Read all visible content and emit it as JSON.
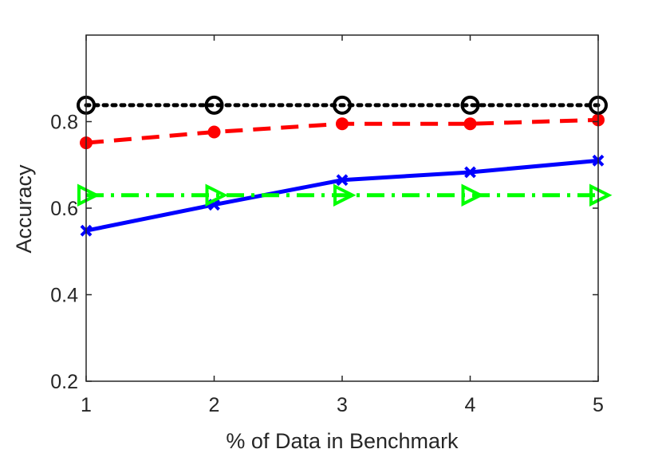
{
  "chart_data": {
    "type": "line",
    "xlabel": "% of Data in Benchmark",
    "ylabel": "Accuracy",
    "x": [
      1,
      2,
      3,
      4,
      5
    ],
    "xlim": [
      1,
      5
    ],
    "ylim": [
      0.2,
      1.0
    ],
    "xticks": [
      "1",
      "2",
      "3",
      "4",
      "5"
    ],
    "yticks": [
      {
        "value": 0.2,
        "label": "0.2"
      },
      {
        "value": 0.4,
        "label": "0.4"
      },
      {
        "value": 0.6,
        "label": "0.6"
      },
      {
        "value": 0.8,
        "label": "0.8"
      }
    ],
    "grid": false,
    "legend": "none",
    "series": [
      {
        "values": [
          0.548,
          0.608,
          0.665,
          0.683,
          0.71
        ],
        "color": "#0000ff",
        "line": "solid",
        "marker": "x"
      },
      {
        "values": [
          0.751,
          0.776,
          0.795,
          0.795,
          0.804
        ],
        "color": "#ff0000",
        "line": "dashed",
        "marker": "filled-circle"
      },
      {
        "values": [
          0.838,
          0.838,
          0.838,
          0.838,
          0.838
        ],
        "color": "#000000",
        "line": "dotted",
        "marker": "open-circle"
      },
      {
        "values": [
          0.63,
          0.63,
          0.63,
          0.63,
          0.63
        ],
        "color": "#00ff00",
        "line": "dash-dot",
        "marker": "right-triangle"
      }
    ]
  }
}
